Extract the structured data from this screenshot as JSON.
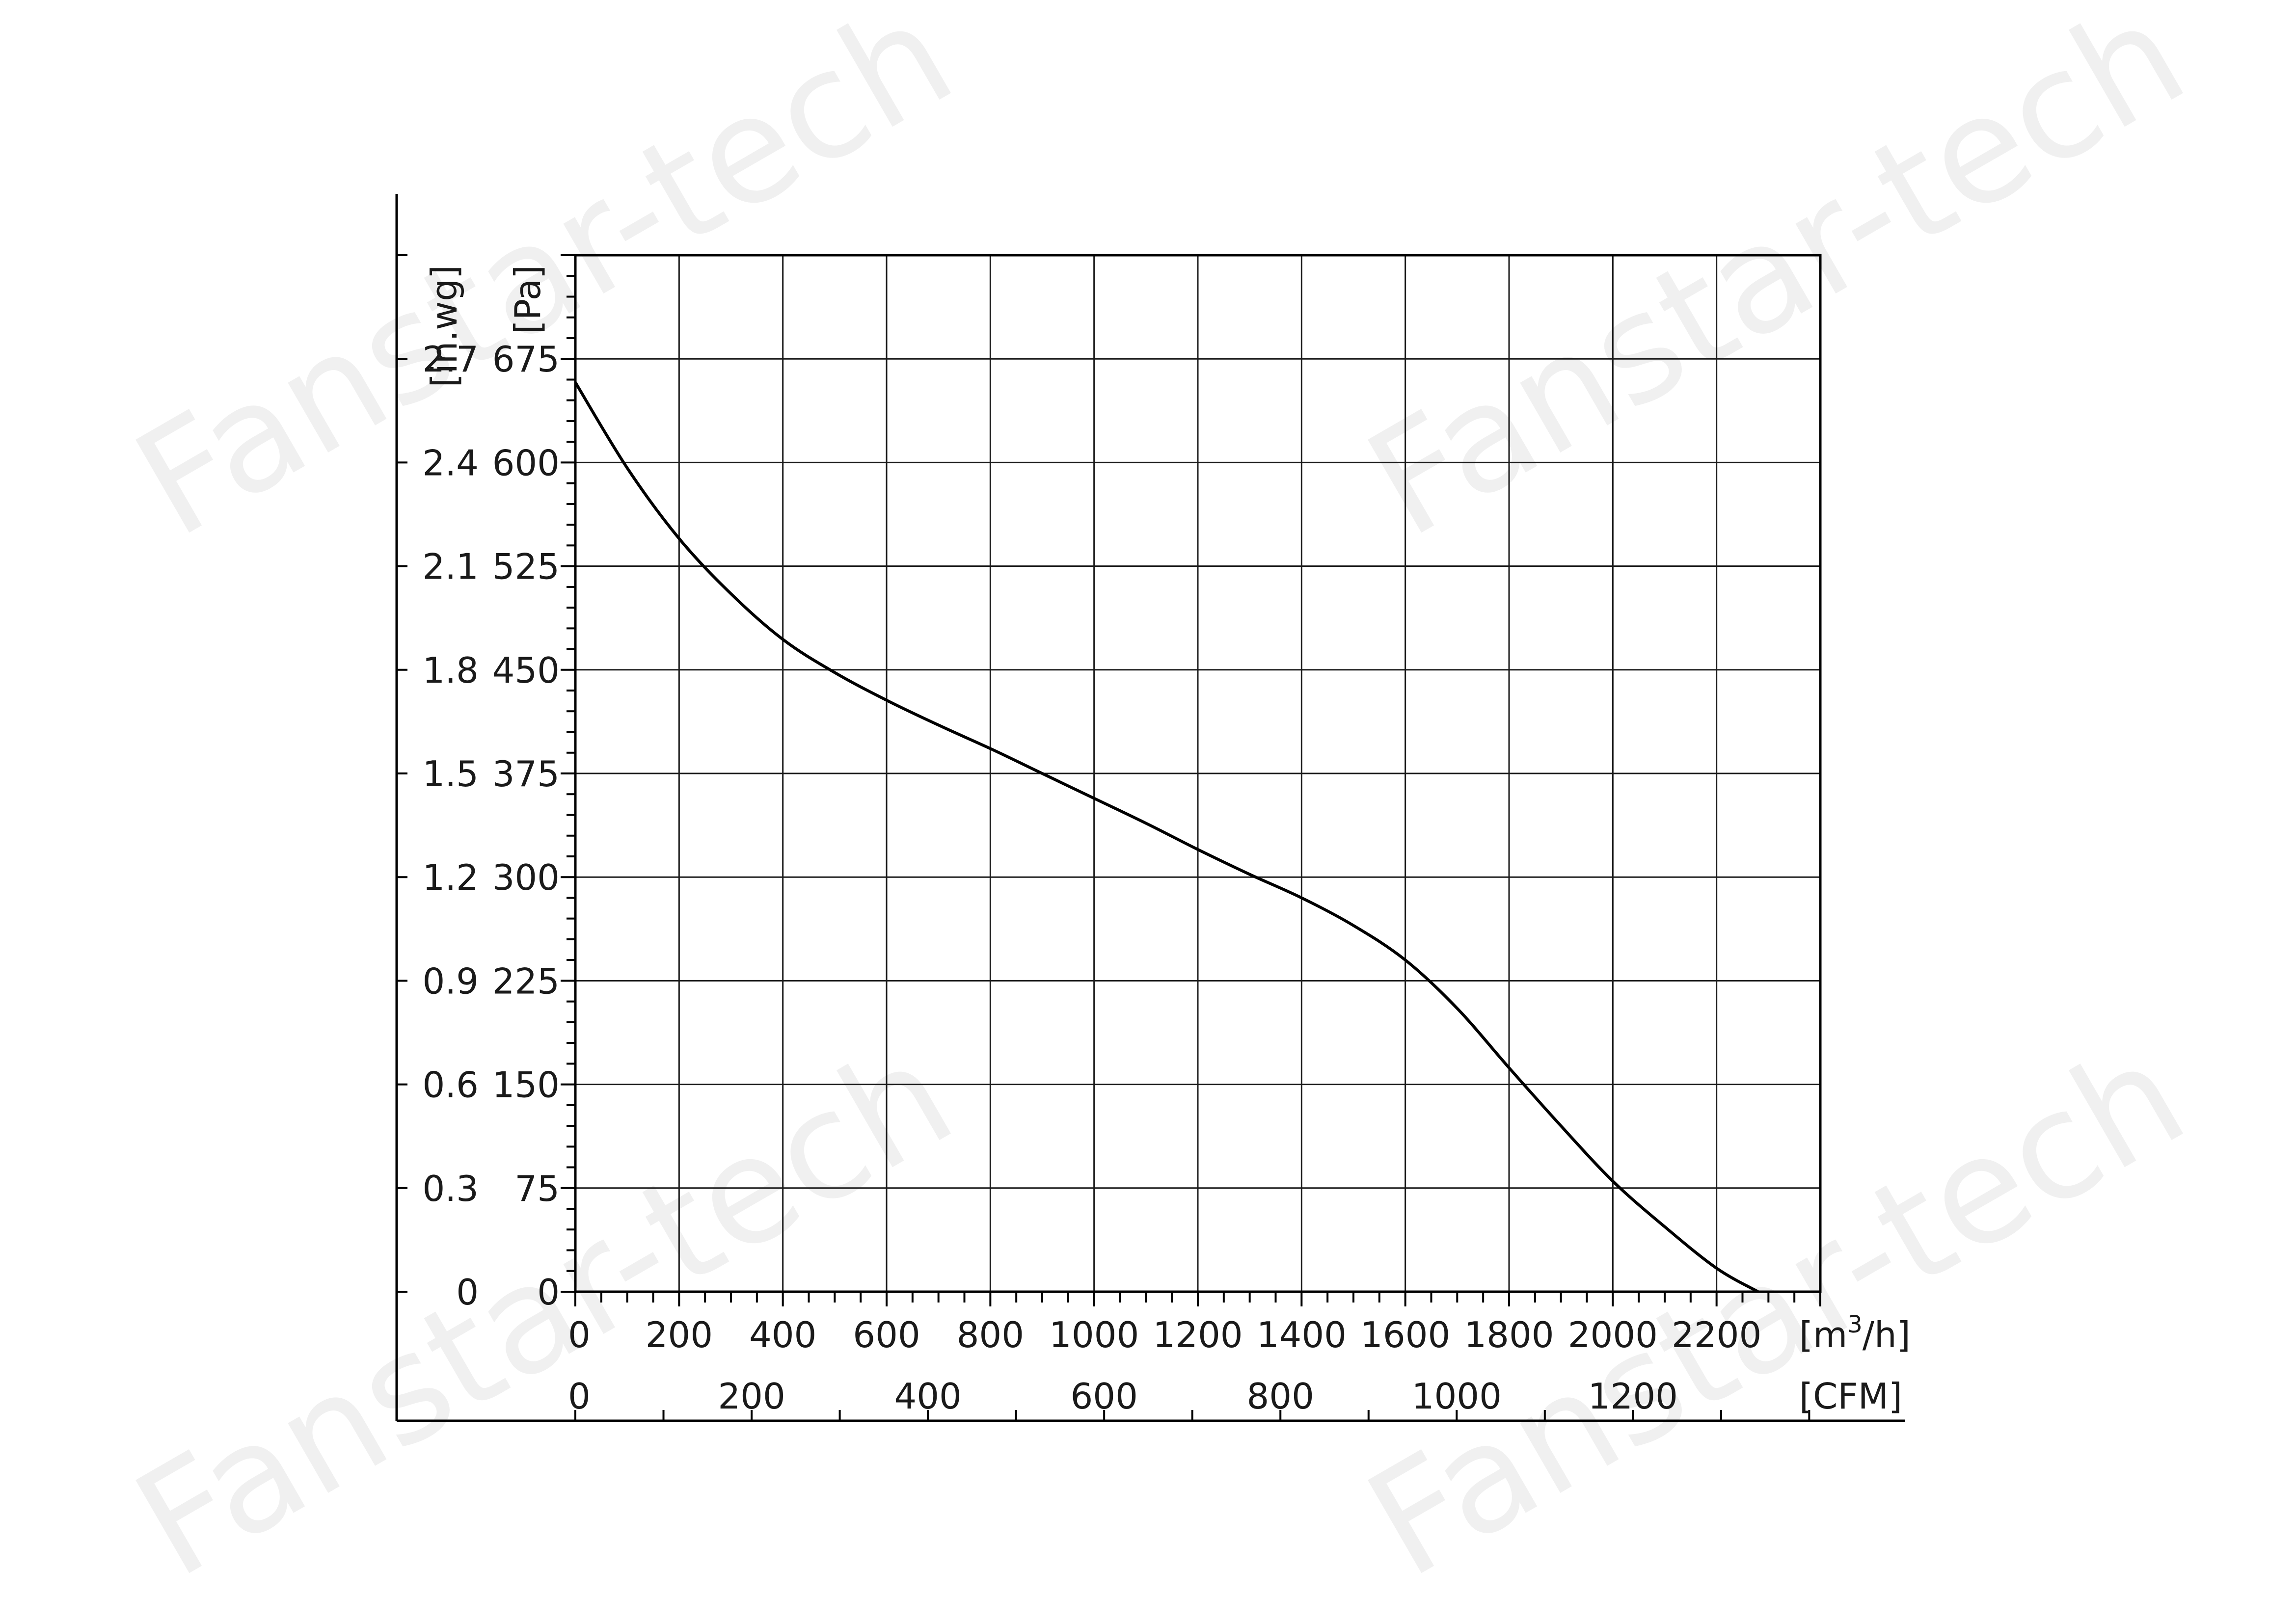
{
  "watermark": "Fanstar-tech",
  "chart_data": {
    "type": "line",
    "x_unit": "[m³/h]",
    "x_unit_base": "[m",
    "x_unit_sup": "3",
    "x_unit_tail": "/h]",
    "x2_unit": "[CFM]",
    "y_unit": "[Pa]",
    "y2_unit": "[in.wg]",
    "xlim": [
      0,
      2400
    ],
    "ylim": [
      0,
      750
    ],
    "x_ticks": [
      "0",
      "200",
      "400",
      "600",
      "800",
      "1000",
      "1200",
      "1400",
      "1600",
      "1800",
      "2000",
      "2200"
    ],
    "x_tick_values": [
      0,
      200,
      400,
      600,
      800,
      1000,
      1200,
      1400,
      1600,
      1800,
      2000,
      2200
    ],
    "x2_ticks": [
      "0",
      "200",
      "400",
      "600",
      "800",
      "1000",
      "1200"
    ],
    "x2_tick_values": [
      0,
      200,
      400,
      600,
      800,
      1000,
      1200
    ],
    "y_ticks": [
      "0",
      "75",
      "150",
      "225",
      "300",
      "375",
      "450",
      "525",
      "600",
      "675"
    ],
    "y_tick_values": [
      0,
      75,
      150,
      225,
      300,
      375,
      450,
      525,
      600,
      675
    ],
    "y2_ticks": [
      "0",
      "0.3",
      "0.6",
      "0.9",
      "1.2",
      "1.5",
      "1.8",
      "2.1",
      "2.4",
      "2.7"
    ],
    "grid": true,
    "line_color": "#000000",
    "series": [
      {
        "x": [
          0,
          100,
          200,
          300,
          400,
          500,
          600,
          700,
          800,
          900,
          1000,
          1100,
          1200,
          1300,
          1400,
          1500,
          1600,
          1700,
          1800,
          1900,
          2000,
          2100,
          2200,
          2280
        ],
        "y": [
          658,
          596,
          545,
          505,
          472,
          448,
          428,
          410,
          393,
          375,
          357,
          339,
          320,
          302,
          285,
          265,
          240,
          205,
          162,
          120,
          80,
          47,
          17,
          0
        ]
      }
    ]
  }
}
